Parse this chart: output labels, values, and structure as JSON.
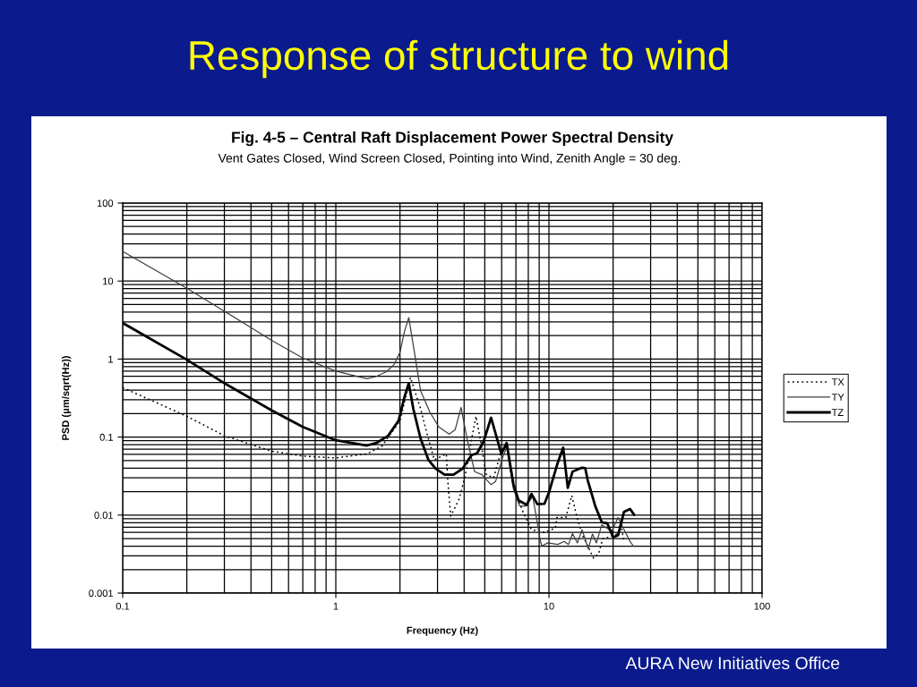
{
  "chart_data": {
    "type": "line",
    "title": "Fig. 4-5 – Central Raft Displacement Power Spectral Density",
    "subtitle": "Vent Gates Closed, Wind Screen Closed, Pointing into Wind, Zenith Angle = 30 deg.",
    "xlabel": "Frequency (Hz)",
    "ylabel": "PSD (μm/sqrt(Hz))",
    "annotations": [
      "Response of structure to wind",
      "AURA New Initiatives Office"
    ],
    "log": "xy",
    "xlim": [
      0.1,
      100
    ],
    "ylim": [
      0.001,
      100
    ],
    "xticks": [
      0.1,
      1,
      10,
      100
    ],
    "yticks": [
      0.001,
      0.01,
      0.1,
      1,
      10,
      100
    ],
    "grid": true,
    "legend": "right",
    "series": [
      {
        "name": "TX",
        "color": "#000000",
        "line_style": "dotted",
        "x": [
          0.1,
          0.2,
          0.3,
          0.5,
          0.7,
          1,
          1.4,
          1.65,
          2.0,
          2.24,
          2.5,
          2.67,
          2.9,
          3.3,
          3.35,
          3.46,
          3.8,
          4.06,
          4.34,
          4.55,
          4.7,
          5.09,
          5.5,
          5.98,
          6.33,
          6.8,
          7.5,
          8.28,
          9.5,
          10.7,
          10.9,
          12.0,
          12.8,
          13.6,
          14.5,
          15.5,
          16.2,
          17.1,
          17.9,
          19.1,
          21.1,
          21.7,
          22.5
        ],
        "values": [
          0.43,
          0.185,
          0.104,
          0.066,
          0.057,
          0.054,
          0.061,
          0.077,
          0.162,
          0.58,
          0.23,
          0.114,
          0.051,
          0.061,
          0.028,
          0.0097,
          0.0163,
          0.033,
          0.095,
          0.185,
          0.114,
          0.033,
          0.03,
          0.067,
          0.077,
          0.023,
          0.0115,
          0.0065,
          0.006,
          0.0068,
          0.0093,
          0.0093,
          0.0178,
          0.0089,
          0.0052,
          0.0036,
          0.0028,
          0.0032,
          0.005,
          0.0052,
          0.0058,
          0.0078,
          0.0046
        ]
      },
      {
        "name": "TY",
        "color": "#404040",
        "line_style": "solid",
        "x": [
          0.1,
          0.2,
          0.3,
          0.5,
          0.7,
          1,
          1.4,
          1.55,
          1.73,
          1.88,
          2.0,
          2.1,
          2.2,
          2.35,
          2.5,
          2.76,
          3.04,
          3.4,
          3.63,
          3.87,
          4.13,
          4.48,
          4.85,
          5.35,
          5.62,
          6.08,
          6.35,
          6.8,
          7.27,
          7.75,
          8.4,
          9.1,
          9.26,
          9.87,
          11.0,
          11.8,
          12.35,
          12.9,
          13.6,
          14.3,
          15.3,
          16.0,
          16.7,
          17.7,
          19.7,
          21.1,
          24.0,
          24.9
        ],
        "values": [
          24,
          8.1,
          4.1,
          1.74,
          1.03,
          0.7,
          0.56,
          0.6,
          0.69,
          0.86,
          1.22,
          2.27,
          3.4,
          1.12,
          0.39,
          0.21,
          0.135,
          0.109,
          0.124,
          0.24,
          0.095,
          0.036,
          0.033,
          0.0245,
          0.027,
          0.056,
          0.075,
          0.022,
          0.0132,
          0.013,
          0.0172,
          0.0048,
          0.004,
          0.0044,
          0.0042,
          0.0046,
          0.0042,
          0.0058,
          0.0044,
          0.0065,
          0.0037,
          0.0057,
          0.0044,
          0.0075,
          0.0062,
          0.0093,
          0.0046,
          0.004
        ]
      },
      {
        "name": "TZ",
        "color": "#000000",
        "line_style": "solid",
        "x": [
          0.1,
          0.2,
          0.3,
          0.5,
          0.7,
          1,
          1.4,
          1.55,
          1.76,
          1.97,
          2.1,
          2.2,
          2.31,
          2.5,
          2.72,
          2.94,
          3.24,
          3.57,
          3.94,
          4.34,
          4.6,
          4.94,
          5.35,
          5.98,
          6.33,
          6.81,
          7.2,
          7.87,
          8.28,
          8.82,
          9.53,
          10.0,
          11.0,
          11.66,
          12.26,
          12.9,
          14.3,
          14.8,
          15.2,
          15.8,
          16.5,
          17.7,
          18.8,
          20.0,
          21.1,
          22.5,
          24.0,
          25.1
        ],
        "values": [
          2.9,
          0.98,
          0.49,
          0.22,
          0.135,
          0.091,
          0.078,
          0.084,
          0.104,
          0.162,
          0.327,
          0.49,
          0.23,
          0.095,
          0.051,
          0.0395,
          0.033,
          0.033,
          0.0395,
          0.059,
          0.062,
          0.088,
          0.177,
          0.061,
          0.084,
          0.025,
          0.0155,
          0.0135,
          0.0187,
          0.0138,
          0.014,
          0.0195,
          0.047,
          0.073,
          0.0223,
          0.036,
          0.0405,
          0.04,
          0.028,
          0.0195,
          0.013,
          0.0081,
          0.0078,
          0.0052,
          0.0055,
          0.011,
          0.012,
          0.0101
        ]
      }
    ]
  }
}
